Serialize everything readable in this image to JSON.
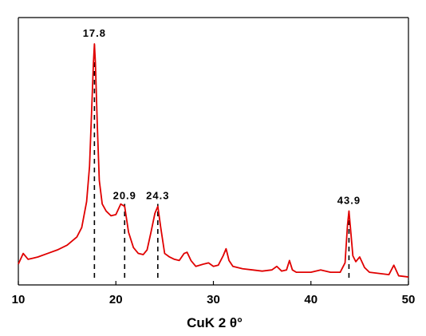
{
  "chart_data": {
    "type": "line",
    "title": "",
    "xlabel": "CuK 2 θ°",
    "ylabel": "",
    "xlim": [
      10,
      50
    ],
    "ylim": [
      0,
      100
    ],
    "x_ticks": [
      "10",
      "20",
      "30",
      "40",
      "50"
    ],
    "grid": false,
    "line_color": "#e00000",
    "peak_marker_color": "#000000",
    "peaks": [
      {
        "x": 17.8,
        "label": "17.8"
      },
      {
        "x": 20.9,
        "label": "20.9"
      },
      {
        "x": 24.3,
        "label": "24.3"
      },
      {
        "x": 43.9,
        "label": "43.9"
      }
    ],
    "series": [
      {
        "x": [
          10.0,
          10.5,
          11.0,
          11.5,
          12.0,
          13.0,
          14.0,
          15.0,
          16.0,
          16.5,
          17.0,
          17.3,
          17.5,
          17.7,
          17.8,
          17.9,
          18.1,
          18.3,
          18.6,
          19.0,
          19.5,
          20.0,
          20.5,
          20.9,
          21.3,
          21.8,
          22.3,
          22.8,
          23.2,
          23.6,
          24.0,
          24.3,
          24.6,
          25.0,
          25.5,
          26.0,
          26.5,
          27.0,
          27.3,
          27.7,
          28.2,
          29.0,
          29.5,
          30.0,
          30.5,
          31.0,
          31.3,
          31.6,
          32.0,
          33.0,
          34.0,
          35.0,
          36.0,
          36.5,
          37.0,
          37.5,
          37.8,
          38.1,
          38.5,
          39.0,
          40.0,
          41.0,
          42.0,
          43.0,
          43.5,
          43.75,
          43.9,
          44.05,
          44.3,
          44.6,
          45.0,
          45.5,
          46.0,
          47.0,
          48.0,
          48.5,
          49.0,
          50.0
        ],
        "y": [
          6.5,
          11.0,
          8.5,
          9.0,
          9.5,
          11.0,
          12.5,
          14.5,
          18.0,
          22.0,
          33.0,
          48.0,
          70.0,
          92.0,
          100.0,
          92.0,
          65.0,
          42.0,
          32.0,
          29.0,
          27.0,
          27.5,
          32.0,
          31.0,
          20.0,
          13.5,
          11.0,
          10.5,
          12.5,
          20.0,
          28.0,
          31.0,
          22.0,
          11.0,
          9.5,
          8.5,
          8.0,
          11.0,
          11.5,
          8.0,
          5.5,
          6.5,
          7.0,
          5.5,
          6.0,
          10.0,
          13.0,
          8.0,
          5.5,
          4.5,
          4.0,
          3.5,
          4.0,
          5.5,
          3.5,
          4.0,
          8.0,
          4.0,
          3.0,
          3.0,
          3.0,
          4.0,
          3.0,
          3.0,
          7.0,
          23.0,
          29.0,
          22.0,
          10.0,
          7.5,
          9.5,
          5.0,
          3.0,
          2.5,
          2.0,
          6.0,
          1.5,
          1.0
        ]
      }
    ]
  }
}
